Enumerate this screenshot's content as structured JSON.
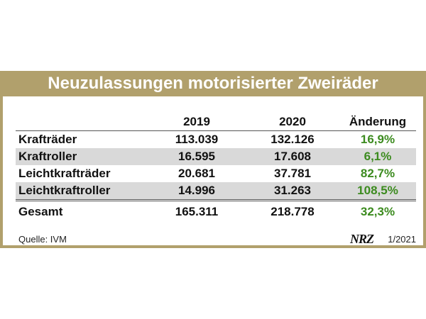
{
  "title": "Neuzulassungen motorisierter Zweiräder",
  "columns": {
    "label": "",
    "y2019": "2019",
    "y2020": "2020",
    "change": "Änderung"
  },
  "rows": [
    {
      "label": "Krafträder",
      "y2019": "113.039",
      "y2020": "132.126",
      "change": "16,9%"
    },
    {
      "label": "Kraftroller",
      "y2019": "16.595",
      "y2020": "17.608",
      "change": "6,1%"
    },
    {
      "label": "Leichtkrafträder",
      "y2019": "20.681",
      "y2020": "37.781",
      "change": "82,7%"
    },
    {
      "label": "Leichtkraftroller",
      "y2019": "14.996",
      "y2020": "31.263",
      "change": "108,5%"
    }
  ],
  "total": {
    "label": "Gesamt",
    "y2019": "165.311",
    "y2020": "218.778",
    "change": "32,3%"
  },
  "footer": {
    "source": "Quelle: IVM",
    "brand": "NRZ",
    "date": "1/2021"
  },
  "colors": {
    "header": "#b1a06c",
    "positive": "#3c8b1f",
    "shade": "#d9d9d9"
  }
}
